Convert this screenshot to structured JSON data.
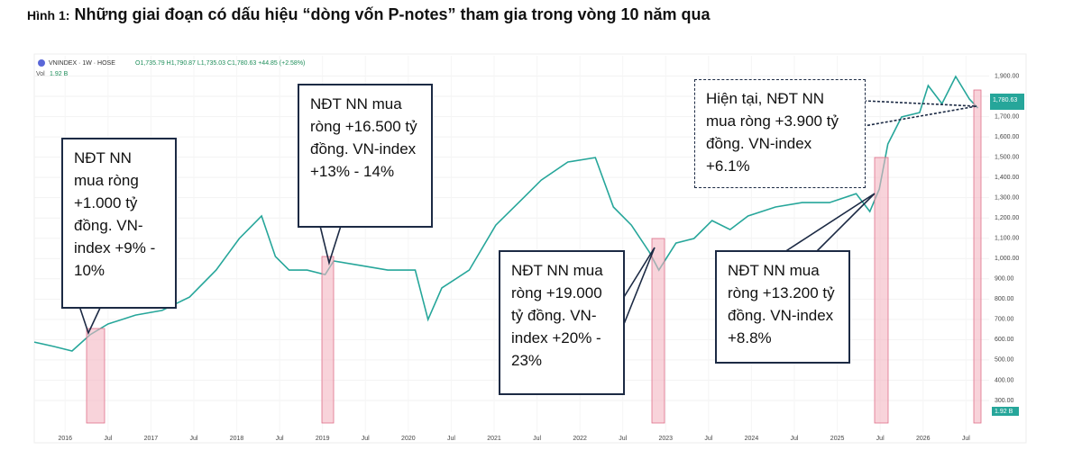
{
  "title_prefix": "Hình 1:",
  "title": "Những giai đoạn có dấu hiệu “dòng vốn P-notes” tham gia trong vòng 10 năm qua",
  "chart_data": {
    "type": "line",
    "header": "VNINDEX · 1W · HOSE",
    "ohlc": "O1,735.79 H1,790.87 L1,735.03 C1,780.63 +44.85 (+2.58%)",
    "volume_label": "Vol",
    "volume_value": "1.92 B",
    "last_price_label": "1,780.63",
    "x": [
      2015.64,
      2015.87,
      2016.08,
      2016.29,
      2016.5,
      2016.82,
      2017.13,
      2017.45,
      2017.76,
      2018.03,
      2018.29,
      2018.45,
      2018.61,
      2018.82,
      2019.03,
      2019.13,
      2019.45,
      2019.76,
      2020.08,
      2020.23,
      2020.39,
      2020.71,
      2021.02,
      2021.34,
      2021.55,
      2021.86,
      2022.18,
      2022.39,
      2022.6,
      2022.81,
      2022.92,
      2023.12,
      2023.33,
      2023.54,
      2023.75,
      2023.96,
      2024.28,
      2024.59,
      2024.91,
      2025.22,
      2025.38,
      2025.49,
      2025.59,
      2025.75,
      2025.96,
      2026.06,
      2026.22,
      2026.38,
      2026.54,
      2026.64
    ],
    "values": [
      588,
      566,
      544,
      624,
      677,
      721,
      744,
      810,
      943,
      1099,
      1210,
      1010,
      943,
      943,
      921,
      988,
      965,
      943,
      943,
      699,
      855,
      943,
      1165,
      1298,
      1387,
      1476,
      1498,
      1254,
      1165,
      1032,
      943,
      1076,
      1099,
      1187,
      1143,
      1210,
      1254,
      1276,
      1276,
      1320,
      1232,
      1343,
      1565,
      1698,
      1720,
      1853,
      1764,
      1898,
      1787,
      1742
    ],
    "color": "#26a69a",
    "xlim": [
      2015.64,
      2026.77
    ],
    "ylim": [
      100,
      2000
    ],
    "xticks": [
      {
        "value": 2016,
        "label": "2016"
      },
      {
        "value": 2016.5,
        "label": "Jul"
      },
      {
        "value": 2017,
        "label": "2017"
      },
      {
        "value": 2017.5,
        "label": "Jul"
      },
      {
        "value": 2018,
        "label": "2018"
      },
      {
        "value": 2018.5,
        "label": "Jul"
      },
      {
        "value": 2019,
        "label": "2019"
      },
      {
        "value": 2019.5,
        "label": "Jul"
      },
      {
        "value": 2020,
        "label": "2020"
      },
      {
        "value": 2020.5,
        "label": "Jul"
      },
      {
        "value": 2021,
        "label": "2021"
      },
      {
        "value": 2021.5,
        "label": "Jul"
      },
      {
        "value": 2022,
        "label": "2022"
      },
      {
        "value": 2022.5,
        "label": "Jul"
      },
      {
        "value": 2023,
        "label": "2023"
      },
      {
        "value": 2023.5,
        "label": "Jul"
      },
      {
        "value": 2024,
        "label": "2024"
      },
      {
        "value": 2024.5,
        "label": "Jul"
      },
      {
        "value": 2025,
        "label": "2025"
      },
      {
        "value": 2025.5,
        "label": "Jul"
      },
      {
        "value": 2026,
        "label": "2026"
      },
      {
        "value": 2026.5,
        "label": "Jul"
      }
    ],
    "yticks": [
      {
        "value": 300,
        "label": "300.00"
      },
      {
        "value": 400,
        "label": "400.00"
      },
      {
        "value": 500,
        "label": "500.00"
      },
      {
        "value": 600,
        "label": "600.00"
      },
      {
        "value": 700,
        "label": "700.00"
      },
      {
        "value": 800,
        "label": "800.00"
      },
      {
        "value": 900,
        "label": "900.00"
      },
      {
        "value": 1000,
        "label": "1,000.00"
      },
      {
        "value": 1100,
        "label": "1,100.00"
      },
      {
        "value": 1200,
        "label": "1,200.00"
      },
      {
        "value": 1300,
        "label": "1,300.00"
      },
      {
        "value": 1400,
        "label": "1,400.00"
      },
      {
        "value": 1500,
        "label": "1,500.00"
      },
      {
        "value": 1600,
        "label": "1,600.00"
      },
      {
        "value": 1700,
        "label": "1,700.00"
      },
      {
        "value": 1800,
        "label": "1,800.00"
      },
      {
        "value": 1900,
        "label": "1,900.00"
      }
    ],
    "grid": true,
    "annotations": [
      "NĐT NN mua ròng +1.000 tỷ đồng. VN-index +9% - 10%",
      "NĐT NN mua ròng +16.500 tỷ đồng. VN-index +13% - 14%",
      "NĐT NN mua ròng +19.000 tỷ đồng. VN-index +20% - 23%",
      "NĐT NN mua ròng +13.200 tỷ đồng. VN-index +8.8%",
      "Hiện tại, NĐT NN mua ròng +3.900 tỷ đồng. VN-index +6.1%"
    ]
  }
}
